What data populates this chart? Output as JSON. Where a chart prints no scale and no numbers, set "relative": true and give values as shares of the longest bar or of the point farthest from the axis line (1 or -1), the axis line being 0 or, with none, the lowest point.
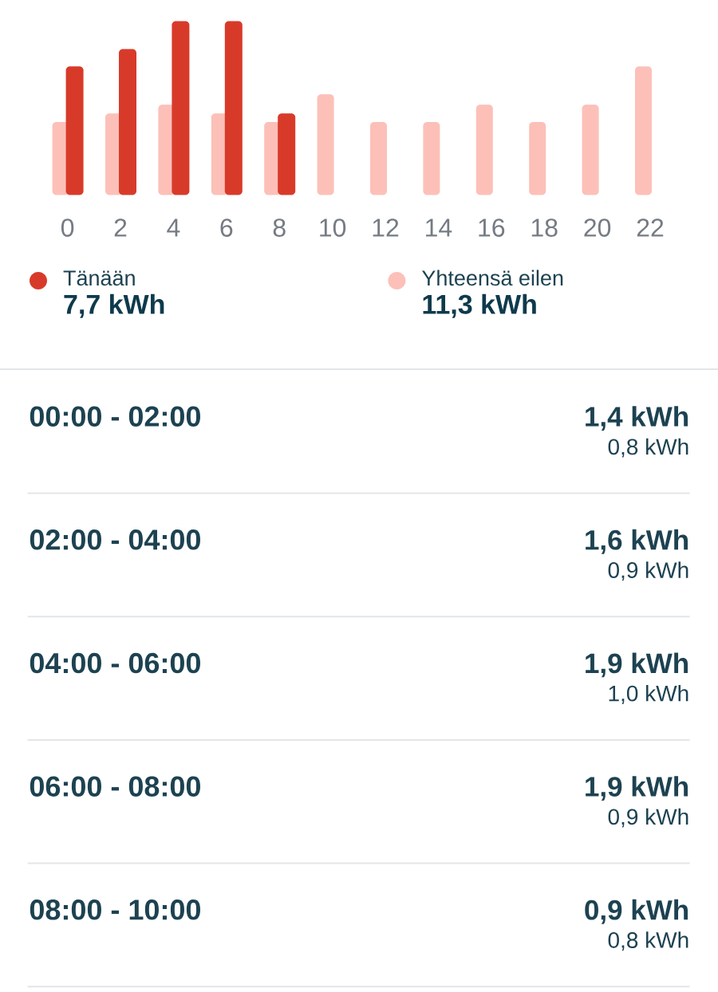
{
  "chart_data": [
    {
      "type": "bar",
      "relative": true,
      "categories": [
        "0",
        "2",
        "4",
        "6",
        "8",
        "10",
        "12",
        "14",
        "16",
        "18",
        "20",
        "22"
      ],
      "series": [
        {
          "name": "Tänään",
          "color": "#d83a2a",
          "values": [
            0.74,
            0.84,
            1,
            1,
            0.47,
            null,
            null,
            null,
            null,
            null,
            null,
            null
          ]
        },
        {
          "name": "Yhteensä eilen",
          "color": "#fcc0b8",
          "values": [
            0.42,
            0.47,
            0.52,
            0.47,
            0.42,
            0.58,
            0.42,
            0.42,
            0.52,
            0.42,
            0.52,
            0.74
          ]
        }
      ],
      "legend": "bottom",
      "annotations": [
        "7,7 kWh",
        "11,3 kWh"
      ]
    },
    {
      "type": "other",
      "categories": [
        "00:00 - 02:00",
        "02:00 - 04:00",
        "04:00 - 06:00",
        "06:00 - 08:00",
        "08:00 - 10:00"
      ],
      "series": [
        {
          "values": [
            1.4,
            1.6,
            1.9,
            1.9,
            0.9
          ],
          "value_labels": [
            "1,4 kWh",
            "1,6 kWh",
            "1,9 kWh",
            "1,9 kWh",
            "0,9 kWh"
          ]
        },
        {
          "values": [
            0.8,
            0.9,
            1.0,
            0.9,
            0.8
          ],
          "value_labels": [
            "0,8 kWh",
            "0,9 kWh",
            "1,0 kWh",
            "0,9 kWh",
            "0,8 kWh"
          ]
        }
      ]
    }
  ]
}
